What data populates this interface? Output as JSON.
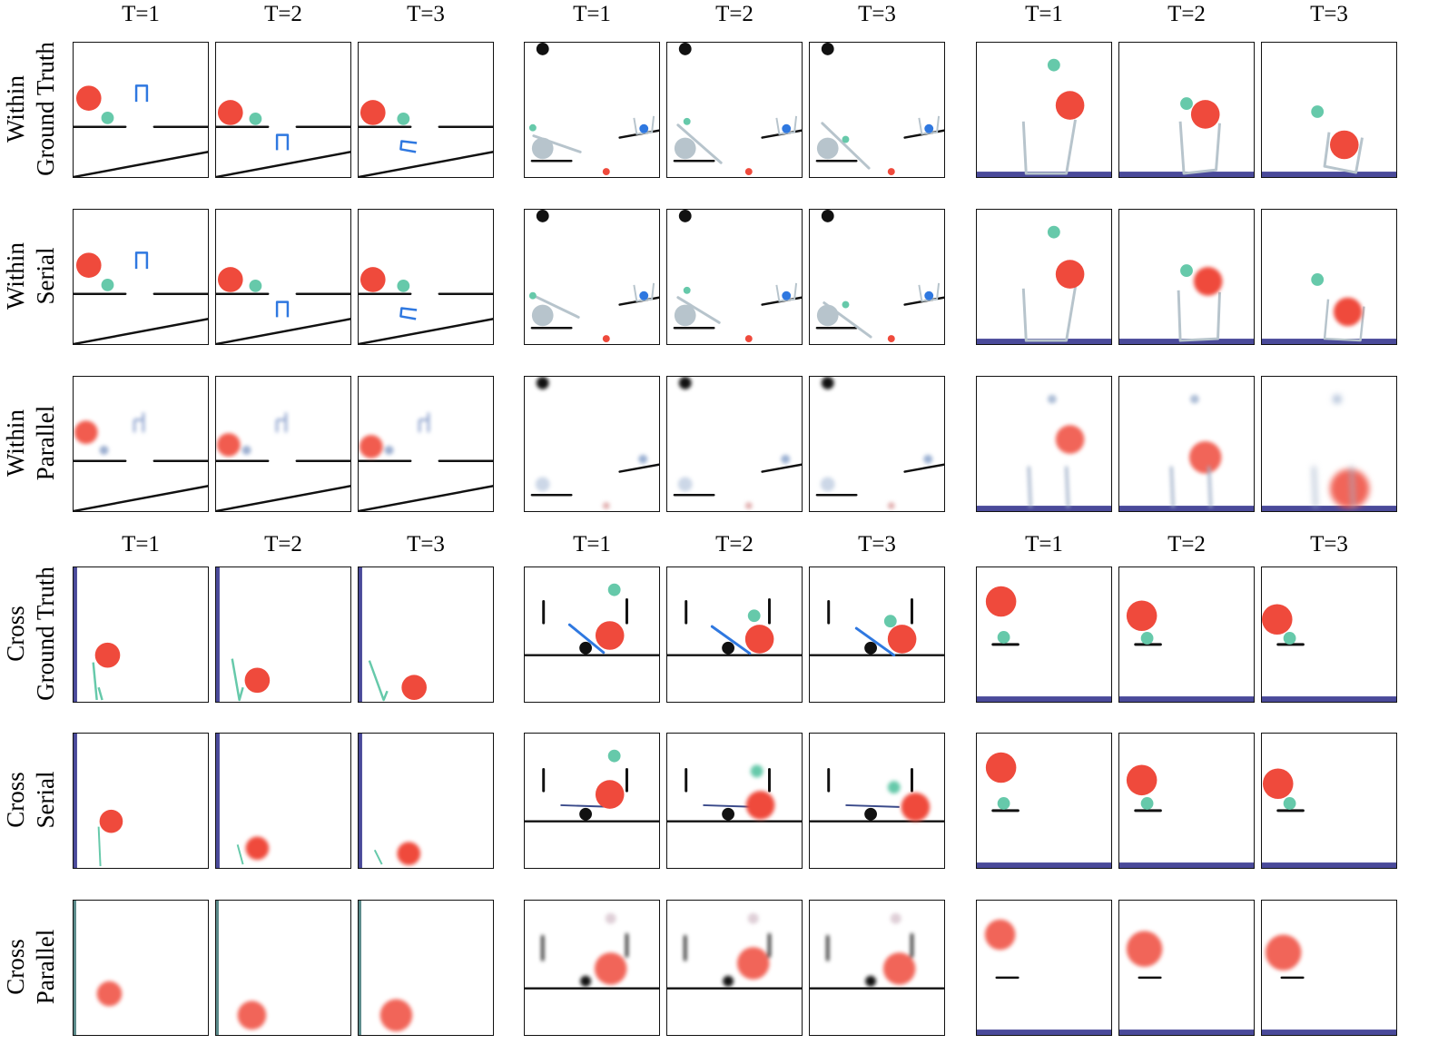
{
  "time_steps": [
    "T=1",
    "T=2",
    "T=3"
  ],
  "row_groups": [
    {
      "setting": "Within",
      "rows": [
        {
          "line1": "Within",
          "line2": "Ground Truth"
        },
        {
          "line1": "Within",
          "line2": "Serial"
        },
        {
          "line1": "Within",
          "line2": "Parallel"
        }
      ]
    },
    {
      "setting": "Cross",
      "rows": [
        {
          "line1": "Cross",
          "line2": "Ground Truth"
        },
        {
          "line1": "Cross",
          "line2": "Serial"
        },
        {
          "line1": "Cross",
          "line2": "Parallel"
        }
      ]
    }
  ],
  "colors": {
    "red_ball": "#ef4a3c",
    "green_ball": "#66c9aa",
    "blue_object": "#2f78e0",
    "gray_object": "#b7c4cc",
    "black_object": "#111111",
    "floor_purple": "#4a4a9a"
  }
}
